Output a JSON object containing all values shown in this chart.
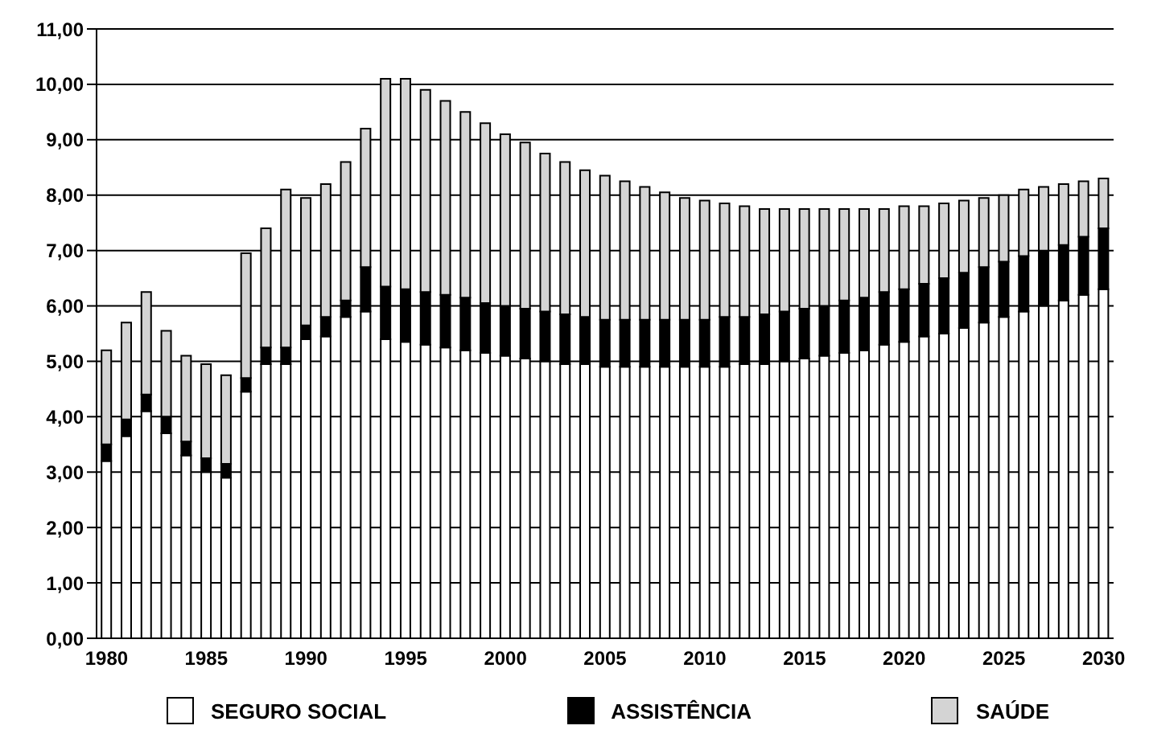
{
  "chart_data": {
    "type": "bar",
    "stacked": true,
    "categories": [
      "1980",
      null,
      null,
      null,
      null,
      "1985",
      null,
      null,
      null,
      null,
      "1990",
      null,
      null,
      null,
      null,
      "1995",
      null,
      null,
      null,
      null,
      "2000",
      null,
      null,
      null,
      null,
      "2005",
      null,
      null,
      null,
      null,
      "2010",
      null,
      null,
      null,
      null,
      "2015",
      null,
      null,
      null,
      null,
      "2020",
      null,
      null,
      null,
      null,
      "2025",
      null,
      null,
      null,
      null,
      "2030"
    ],
    "series": [
      {
        "name": "SEGURO SOCIAL",
        "color": "#ffffff",
        "values": [
          3.2,
          3.65,
          4.1,
          3.7,
          3.3,
          3.0,
          2.9,
          4.45,
          4.95,
          4.95,
          5.4,
          5.45,
          5.8,
          5.9,
          5.4,
          5.35,
          5.3,
          5.25,
          5.2,
          5.15,
          5.1,
          5.05,
          5.0,
          4.95,
          4.95,
          4.9,
          4.9,
          4.9,
          4.9,
          4.9,
          4.9,
          4.9,
          4.95,
          4.95,
          5.0,
          5.05,
          5.1,
          5.15,
          5.2,
          5.3,
          5.35,
          5.45,
          5.5,
          5.6,
          5.7,
          5.8,
          5.9,
          6.0,
          6.1,
          6.2,
          6.3
        ]
      },
      {
        "name": "ASSISTÊNCIA",
        "color": "#000000",
        "values": [
          0.3,
          0.3,
          0.3,
          0.3,
          0.25,
          0.25,
          0.25,
          0.25,
          0.3,
          0.3,
          0.25,
          0.35,
          0.3,
          0.8,
          0.95,
          0.95,
          0.95,
          0.95,
          0.95,
          0.9,
          0.9,
          0.9,
          0.9,
          0.9,
          0.85,
          0.85,
          0.85,
          0.85,
          0.85,
          0.85,
          0.85,
          0.9,
          0.85,
          0.9,
          0.9,
          0.9,
          0.9,
          0.95,
          0.95,
          0.95,
          0.95,
          0.95,
          1.0,
          1.0,
          1.0,
          1.0,
          1.0,
          1.0,
          1.0,
          1.05,
          1.1
        ]
      },
      {
        "name": "SAÚDE",
        "color": "#d4d4d4",
        "values": [
          1.7,
          1.75,
          1.85,
          1.55,
          1.55,
          1.7,
          1.6,
          2.25,
          2.15,
          2.85,
          2.3,
          2.4,
          2.5,
          2.5,
          3.75,
          3.8,
          3.65,
          3.5,
          3.35,
          3.25,
          3.1,
          3.0,
          2.85,
          2.75,
          2.65,
          2.6,
          2.5,
          2.4,
          2.3,
          2.2,
          2.15,
          2.05,
          2.0,
          1.9,
          1.85,
          1.8,
          1.75,
          1.65,
          1.6,
          1.5,
          1.5,
          1.4,
          1.35,
          1.3,
          1.25,
          1.2,
          1.2,
          1.15,
          1.1,
          1.0,
          0.9
        ]
      }
    ],
    "ylim": [
      0,
      11
    ],
    "yticks": [
      {
        "value": 0,
        "label": "0,00"
      },
      {
        "value": 1,
        "label": "1,00"
      },
      {
        "value": 2,
        "label": "2,00"
      },
      {
        "value": 3,
        "label": "3,00"
      },
      {
        "value": 4,
        "label": "4,00"
      },
      {
        "value": 5,
        "label": "5,00"
      },
      {
        "value": 6,
        "label": "6,00"
      },
      {
        "value": 7,
        "label": "7,00"
      },
      {
        "value": 8,
        "label": "8,00"
      },
      {
        "value": 9,
        "label": "9,00"
      },
      {
        "value": 10,
        "label": "10,00"
      },
      {
        "value": 11,
        "label": "11,00"
      }
    ],
    "grid": "y",
    "legend": "bottom"
  }
}
